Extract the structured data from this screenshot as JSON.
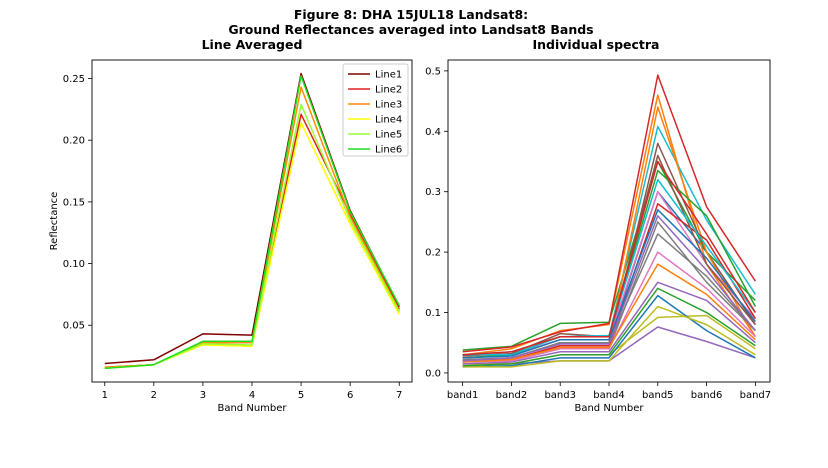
{
  "figure": {
    "title_line1": "Figure 8: DHA 15JUL18  Landsat8:",
    "title_line2": "Ground Reflectances averaged into Landsat8 Bands"
  },
  "chart_data": [
    {
      "type": "line",
      "title": "Line Averaged",
      "xlabel": "Band Number",
      "ylabel": "Reflectance",
      "x": [
        1,
        2,
        3,
        4,
        5,
        6,
        7
      ],
      "xticks": [
        "1",
        "2",
        "3",
        "4",
        "5",
        "6",
        "7"
      ],
      "yticks": [
        "0.05",
        "0.10",
        "0.15",
        "0.20",
        "0.25"
      ],
      "xlim": [
        0.74,
        7.26
      ],
      "ylim": [
        0.004,
        0.265
      ],
      "legend": "top-right",
      "grid": false,
      "series": [
        {
          "name": "Line1",
          "color": "#800000",
          "values": [
            0.019,
            0.022,
            0.043,
            0.042,
            0.254,
            0.143,
            0.065
          ]
        },
        {
          "name": "Line2",
          "color": "#e02020",
          "values": [
            0.016,
            0.018,
            0.036,
            0.036,
            0.221,
            0.14,
            0.063
          ]
        },
        {
          "name": "Line3",
          "color": "#ff8c00",
          "values": [
            0.016,
            0.018,
            0.036,
            0.036,
            0.243,
            0.138,
            0.062
          ]
        },
        {
          "name": "Line4",
          "color": "#ffff00",
          "values": [
            0.015,
            0.018,
            0.034,
            0.033,
            0.214,
            0.132,
            0.059
          ]
        },
        {
          "name": "Line5",
          "color": "#99ff33",
          "values": [
            0.015,
            0.018,
            0.035,
            0.034,
            0.229,
            0.135,
            0.061
          ]
        },
        {
          "name": "Line6",
          "color": "#22dd22",
          "values": [
            0.015,
            0.018,
            0.037,
            0.037,
            0.252,
            0.142,
            0.066
          ]
        }
      ]
    },
    {
      "type": "line",
      "title": "Individual spectra",
      "xlabel": "Band Number",
      "ylabel": "",
      "categories": [
        "band1",
        "band2",
        "band3",
        "band4",
        "band5",
        "band6",
        "band7"
      ],
      "yticks": [
        "0.0",
        "0.1",
        "0.2",
        "0.3",
        "0.4",
        "0.5"
      ],
      "xlim": [
        -0.3,
        6.3
      ],
      "ylim": [
        -0.015,
        0.518
      ],
      "legend": "none",
      "grid": false,
      "palette": [
        "#1f77b4",
        "#ff7f0e",
        "#2ca02c",
        "#d62728",
        "#9467bd",
        "#8c564b",
        "#e377c2",
        "#7f7f7f",
        "#bcbd22",
        "#17becf"
      ],
      "series": [
        {
          "values": [
            0.02,
            0.025,
            0.05,
            0.05,
            0.3,
            0.2,
            0.08
          ]
        },
        {
          "values": [
            0.03,
            0.04,
            0.07,
            0.08,
            0.46,
            0.18,
            0.06
          ]
        },
        {
          "values": [
            0.038,
            0.044,
            0.082,
            0.084,
            0.35,
            0.2,
            0.12
          ]
        },
        {
          "values": [
            0.035,
            0.043,
            0.068,
            0.082,
            0.493,
            0.275,
            0.152
          ]
        },
        {
          "values": [
            0.015,
            0.015,
            0.02,
            0.02,
            0.076,
            0.052,
            0.025
          ]
        },
        {
          "values": [
            0.02,
            0.022,
            0.045,
            0.045,
            0.38,
            0.2,
            0.08
          ]
        },
        {
          "values": [
            0.025,
            0.03,
            0.055,
            0.055,
            0.3,
            0.18,
            0.09
          ]
        },
        {
          "values": [
            0.02,
            0.02,
            0.04,
            0.04,
            0.25,
            0.15,
            0.07
          ]
        },
        {
          "values": [
            0.015,
            0.015,
            0.03,
            0.03,
            0.092,
            0.095,
            0.04
          ]
        },
        {
          "values": [
            0.03,
            0.035,
            0.06,
            0.06,
            0.408,
            0.253,
            0.13
          ]
        },
        {
          "values": [
            0.01,
            0.012,
            0.025,
            0.025,
            0.128,
            0.07,
            0.025
          ]
        },
        {
          "values": [
            0.02,
            0.025,
            0.05,
            0.05,
            0.44,
            0.2,
            0.06
          ]
        },
        {
          "values": [
            0.025,
            0.03,
            0.06,
            0.06,
            0.335,
            0.26,
            0.11
          ]
        },
        {
          "values": [
            0.02,
            0.022,
            0.045,
            0.045,
            0.28,
            0.22,
            0.09
          ]
        },
        {
          "values": [
            0.015,
            0.018,
            0.035,
            0.035,
            0.15,
            0.12,
            0.05
          ]
        },
        {
          "values": [
            0.028,
            0.032,
            0.065,
            0.06,
            0.36,
            0.18,
            0.08
          ]
        },
        {
          "values": [
            0.018,
            0.02,
            0.04,
            0.04,
            0.2,
            0.14,
            0.06
          ]
        },
        {
          "values": [
            0.022,
            0.025,
            0.05,
            0.05,
            0.23,
            0.16,
            0.07
          ]
        },
        {
          "values": [
            0.01,
            0.01,
            0.02,
            0.02,
            0.11,
            0.08,
            0.03
          ]
        },
        {
          "values": [
            0.03,
            0.03,
            0.06,
            0.062,
            0.32,
            0.21,
            0.1
          ]
        },
        {
          "values": [
            0.025,
            0.028,
            0.055,
            0.055,
            0.27,
            0.19,
            0.085
          ]
        },
        {
          "values": [
            0.018,
            0.022,
            0.042,
            0.042,
            0.18,
            0.13,
            0.055
          ]
        },
        {
          "values": [
            0.012,
            0.015,
            0.03,
            0.03,
            0.14,
            0.1,
            0.045
          ]
        },
        {
          "values": [
            0.03,
            0.035,
            0.06,
            0.06,
            0.35,
            0.23,
            0.1
          ]
        },
        {
          "values": [
            0.02,
            0.025,
            0.048,
            0.048,
            0.26,
            0.17,
            0.07
          ]
        }
      ]
    }
  ]
}
